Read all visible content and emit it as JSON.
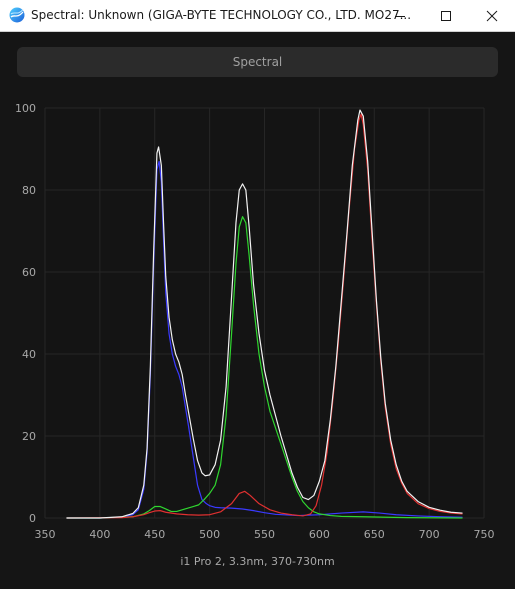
{
  "window": {
    "title": "Spectral: Unknown (GIGA-BYTE TECHNOLOGY CO., LTD. MO27...",
    "icon": "spectral-app-icon"
  },
  "toolbar": {
    "spectral_label": "Spectral"
  },
  "caption": "i1 Pro 2, 3.3nm, 370-730nm",
  "chart_data": {
    "type": "line",
    "xlim": [
      350,
      750
    ],
    "ylim": [
      0,
      100
    ],
    "x_ticks": [
      "350",
      "400",
      "450",
      "500",
      "550",
      "600",
      "650",
      "700",
      "750"
    ],
    "y_ticks": [
      "0",
      "20",
      "40",
      "60",
      "80",
      "100"
    ],
    "grid": true,
    "series": [
      {
        "color": "#3a3aff",
        "points": [
          [
            370,
            0
          ],
          [
            400,
            0
          ],
          [
            420,
            0.2
          ],
          [
            430,
            0.8
          ],
          [
            435,
            2
          ],
          [
            440,
            7
          ],
          [
            443,
            16
          ],
          [
            446,
            35
          ],
          [
            449,
            62
          ],
          [
            452,
            85
          ],
          [
            454,
            87
          ],
          [
            456,
            82
          ],
          [
            458,
            68
          ],
          [
            460,
            55
          ],
          [
            463,
            45
          ],
          [
            466,
            40
          ],
          [
            469,
            37
          ],
          [
            472,
            35
          ],
          [
            475,
            32
          ],
          [
            478,
            27
          ],
          [
            481,
            22
          ],
          [
            485,
            15
          ],
          [
            489,
            8
          ],
          [
            493,
            4.5
          ],
          [
            497,
            3.5
          ],
          [
            500,
            3
          ],
          [
            505,
            2.6
          ],
          [
            510,
            2.5
          ],
          [
            520,
            2.4
          ],
          [
            530,
            2.2
          ],
          [
            540,
            1.8
          ],
          [
            550,
            1.3
          ],
          [
            560,
            0.9
          ],
          [
            580,
            0.6
          ],
          [
            600,
            0.8
          ],
          [
            620,
            1.2
          ],
          [
            640,
            1.5
          ],
          [
            655,
            1.2
          ],
          [
            670,
            0.8
          ],
          [
            690,
            0.5
          ],
          [
            710,
            0.3
          ],
          [
            730,
            0.2
          ]
        ]
      },
      {
        "color": "#2fd62f",
        "points": [
          [
            370,
            0
          ],
          [
            400,
            0
          ],
          [
            430,
            0.3
          ],
          [
            440,
            1
          ],
          [
            445,
            1.8
          ],
          [
            450,
            2.8
          ],
          [
            455,
            2.8
          ],
          [
            460,
            2.2
          ],
          [
            465,
            1.6
          ],
          [
            470,
            1.6
          ],
          [
            475,
            2
          ],
          [
            480,
            2.4
          ],
          [
            485,
            2.8
          ],
          [
            490,
            3.2
          ],
          [
            495,
            4.5
          ],
          [
            500,
            6
          ],
          [
            505,
            8
          ],
          [
            510,
            13
          ],
          [
            515,
            25
          ],
          [
            520,
            45
          ],
          [
            524,
            62
          ],
          [
            527,
            71
          ],
          [
            530,
            73.5
          ],
          [
            533,
            72
          ],
          [
            536,
            64
          ],
          [
            540,
            52
          ],
          [
            545,
            40
          ],
          [
            550,
            32
          ],
          [
            555,
            26
          ],
          [
            560,
            22
          ],
          [
            565,
            18
          ],
          [
            570,
            14
          ],
          [
            575,
            10
          ],
          [
            580,
            6.5
          ],
          [
            585,
            4
          ],
          [
            590,
            2.5
          ],
          [
            595,
            1.5
          ],
          [
            600,
            1
          ],
          [
            610,
            0.6
          ],
          [
            620,
            0.4
          ],
          [
            640,
            0.3
          ],
          [
            680,
            0.1
          ],
          [
            730,
            0
          ]
        ]
      },
      {
        "color": "#e03030",
        "points": [
          [
            370,
            0
          ],
          [
            420,
            0.1
          ],
          [
            430,
            0.3
          ],
          [
            440,
            0.8
          ],
          [
            445,
            1.3
          ],
          [
            450,
            1.7
          ],
          [
            455,
            1.8
          ],
          [
            460,
            1.4
          ],
          [
            470,
            1
          ],
          [
            480,
            0.8
          ],
          [
            490,
            0.7
          ],
          [
            500,
            0.8
          ],
          [
            510,
            1.5
          ],
          [
            520,
            3.5
          ],
          [
            527,
            6
          ],
          [
            532,
            6.5
          ],
          [
            537,
            5.5
          ],
          [
            545,
            3.5
          ],
          [
            555,
            2
          ],
          [
            565,
            1.2
          ],
          [
            575,
            0.8
          ],
          [
            585,
            0.5
          ],
          [
            592,
            1
          ],
          [
            597,
            3
          ],
          [
            602,
            8
          ],
          [
            607,
            16
          ],
          [
            612,
            28
          ],
          [
            617,
            42
          ],
          [
            622,
            58
          ],
          [
            627,
            75
          ],
          [
            632,
            90
          ],
          [
            636,
            97
          ],
          [
            638,
            98.5
          ],
          [
            640,
            96
          ],
          [
            644,
            85
          ],
          [
            648,
            68
          ],
          [
            652,
            52
          ],
          [
            656,
            38
          ],
          [
            660,
            27
          ],
          [
            665,
            18
          ],
          [
            670,
            12
          ],
          [
            675,
            8.5
          ],
          [
            680,
            6
          ],
          [
            690,
            3.5
          ],
          [
            700,
            2.3
          ],
          [
            710,
            1.6
          ],
          [
            720,
            1.2
          ],
          [
            730,
            1
          ]
        ]
      },
      {
        "color": "#f2f2f2",
        "points": [
          [
            370,
            0
          ],
          [
            400,
            0
          ],
          [
            420,
            0.3
          ],
          [
            430,
            1.1
          ],
          [
            435,
            2.5
          ],
          [
            440,
            8
          ],
          [
            443,
            17
          ],
          [
            446,
            37
          ],
          [
            449,
            65
          ],
          [
            452,
            89
          ],
          [
            453.5,
            90.5
          ],
          [
            456,
            86
          ],
          [
            458,
            72
          ],
          [
            460,
            59
          ],
          [
            463,
            49
          ],
          [
            466,
            43.5
          ],
          [
            469,
            40
          ],
          [
            472,
            38
          ],
          [
            475,
            35
          ],
          [
            478,
            30
          ],
          [
            481,
            25.5
          ],
          [
            485,
            19.5
          ],
          [
            489,
            14
          ],
          [
            493,
            11
          ],
          [
            496,
            10.3
          ],
          [
            500,
            10.5
          ],
          [
            505,
            13
          ],
          [
            510,
            19
          ],
          [
            515,
            32
          ],
          [
            520,
            54
          ],
          [
            524,
            72
          ],
          [
            527,
            80
          ],
          [
            530,
            81.5
          ],
          [
            533,
            80
          ],
          [
            536,
            71
          ],
          [
            540,
            57
          ],
          [
            545,
            45
          ],
          [
            550,
            36
          ],
          [
            555,
            30
          ],
          [
            560,
            25
          ],
          [
            565,
            20
          ],
          [
            570,
            15.5
          ],
          [
            575,
            11
          ],
          [
            580,
            7.5
          ],
          [
            585,
            5
          ],
          [
            590,
            4.5
          ],
          [
            595,
            5.5
          ],
          [
            600,
            9
          ],
          [
            605,
            14
          ],
          [
            610,
            24
          ],
          [
            615,
            37
          ],
          [
            620,
            53
          ],
          [
            625,
            69
          ],
          [
            630,
            86
          ],
          [
            635,
            97
          ],
          [
            637,
            99.5
          ],
          [
            640,
            98
          ],
          [
            644,
            87
          ],
          [
            648,
            70
          ],
          [
            652,
            53
          ],
          [
            656,
            39
          ],
          [
            660,
            28
          ],
          [
            665,
            19
          ],
          [
            670,
            13
          ],
          [
            675,
            9
          ],
          [
            680,
            6.5
          ],
          [
            690,
            4
          ],
          [
            700,
            2.6
          ],
          [
            710,
            1.9
          ],
          [
            720,
            1.4
          ],
          [
            730,
            1.2
          ]
        ]
      }
    ]
  }
}
